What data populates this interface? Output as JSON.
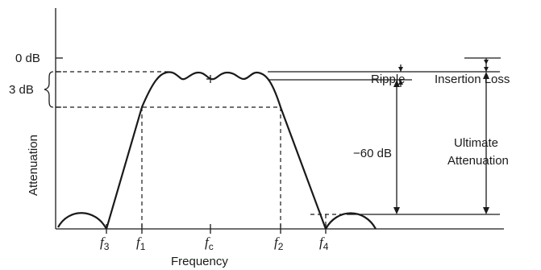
{
  "diagram": {
    "labels": {
      "zero_db": "0 dB",
      "three_db": "3 dB",
      "sixty_db": "−60 dB",
      "ripple": "Ripple",
      "insertion_loss": "Insertion Loss",
      "ultimate_line1": "Ultimate",
      "ultimate_line2": "Attenuation",
      "y_axis": "Attenuation",
      "x_axis": "Frequency"
    },
    "frequencies": [
      {
        "symbol": "f",
        "sub": "3"
      },
      {
        "symbol": "f",
        "sub": "1"
      },
      {
        "symbol": "f",
        "sub": "c"
      },
      {
        "symbol": "f",
        "sub": "2"
      },
      {
        "symbol": "f",
        "sub": "4"
      }
    ]
  }
}
